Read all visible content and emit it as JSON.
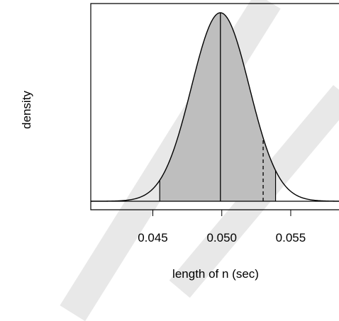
{
  "chart_data": {
    "type": "area",
    "title": "",
    "xlabel": "length of n (sec)",
    "ylabel": "density",
    "xlim": [
      0.0405,
      0.0585
    ],
    "x_ticks": [
      0.045,
      0.05,
      0.055
    ],
    "x_tick_labels": [
      "0.045",
      "0.050",
      "0.055"
    ],
    "y_ticks_shown": false,
    "grid": false,
    "legend": "none",
    "distribution": {
      "shape": "normal",
      "mean": 0.0499,
      "sd": 0.0021
    },
    "shaded_interval": [
      0.0455,
      0.0539
    ],
    "vertical_lines": [
      {
        "x": 0.0499,
        "style": "solid"
      },
      {
        "x": 0.053,
        "style": "dashed"
      }
    ],
    "colors": {
      "curve": "#000000",
      "shade": "#bebebe",
      "frame": "#000000"
    }
  }
}
